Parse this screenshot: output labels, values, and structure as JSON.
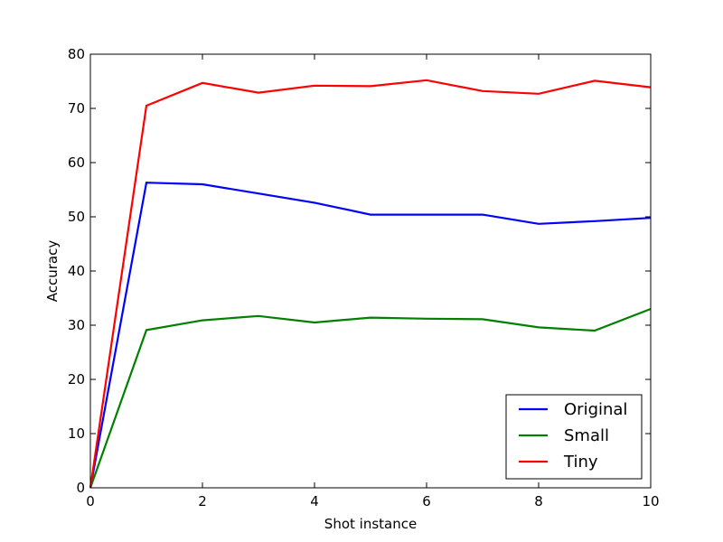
{
  "chart_data": {
    "type": "line",
    "xlabel": "Shot instance",
    "ylabel": "Accuracy",
    "xlim": [
      0,
      10
    ],
    "ylim": [
      0,
      80
    ],
    "x_ticks": [
      0,
      2,
      4,
      6,
      8,
      10
    ],
    "y_ticks": [
      0,
      10,
      20,
      30,
      40,
      50,
      60,
      70,
      80
    ],
    "grid": false,
    "legend_position": "lower-right",
    "x": [
      0,
      1,
      2,
      3,
      4,
      5,
      6,
      7,
      8,
      9,
      10
    ],
    "series": [
      {
        "name": "Original",
        "color": "#0000ff",
        "values": [
          0,
          56.3,
          56.0,
          54.3,
          52.6,
          50.4,
          50.4,
          50.4,
          48.7,
          49.2,
          49.8
        ]
      },
      {
        "name": "Small",
        "color": "#008000",
        "values": [
          0,
          29.1,
          30.9,
          31.7,
          30.5,
          31.4,
          31.2,
          31.1,
          29.6,
          29.0,
          33.0
        ]
      },
      {
        "name": "Tiny",
        "color": "#ff0000",
        "values": [
          0,
          70.5,
          74.7,
          72.9,
          74.2,
          74.1,
          75.2,
          73.2,
          72.7,
          75.1,
          73.9
        ]
      }
    ]
  }
}
